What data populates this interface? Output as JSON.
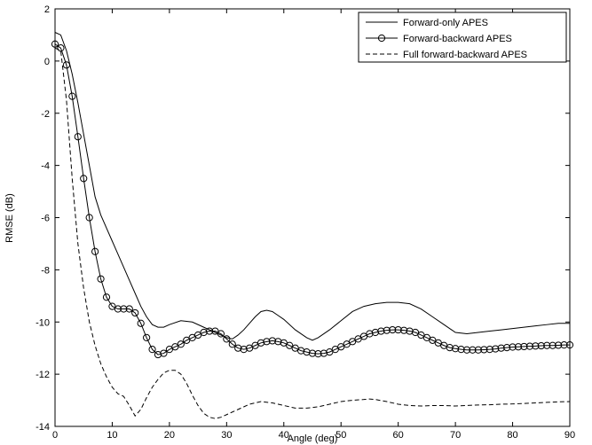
{
  "chart_data": {
    "type": "line",
    "xlabel": "Angle (deg)",
    "ylabel": "RMSE (dB)",
    "xlim": [
      0,
      90
    ],
    "ylim": [
      -14,
      2
    ],
    "xticks": [
      0,
      10,
      20,
      30,
      40,
      50,
      60,
      70,
      80,
      90
    ],
    "yticks": [
      2,
      0,
      -2,
      -4,
      -6,
      -8,
      -10,
      -12,
      -14
    ],
    "grid": false,
    "legend_position": "top-right",
    "series": [
      {
        "name": "Forward-only APES",
        "style": "solid",
        "marker": "none",
        "x": [
          0,
          1,
          2,
          3,
          4,
          5,
          6,
          7,
          8,
          9,
          10,
          11,
          12,
          13,
          14,
          15,
          16,
          17,
          18,
          19,
          20,
          22,
          24,
          26,
          28,
          29,
          30,
          31,
          32,
          33,
          34,
          35,
          36,
          37,
          38,
          39,
          40,
          42,
          44,
          45,
          46,
          48,
          50,
          52,
          54,
          56,
          58,
          60,
          62,
          64,
          66,
          68,
          70,
          72,
          74,
          76,
          78,
          80,
          82,
          84,
          86,
          88,
          90
        ],
        "y": [
          1.1,
          1.0,
          0.4,
          -0.5,
          -1.6,
          -2.8,
          -4.0,
          -5.2,
          -5.9,
          -6.4,
          -6.9,
          -7.4,
          -7.9,
          -8.4,
          -8.9,
          -9.4,
          -9.8,
          -10.1,
          -10.2,
          -10.2,
          -10.1,
          -9.95,
          -10.0,
          -10.2,
          -10.4,
          -10.5,
          -10.6,
          -10.65,
          -10.5,
          -10.3,
          -10.05,
          -9.8,
          -9.6,
          -9.55,
          -9.6,
          -9.75,
          -9.9,
          -10.3,
          -10.6,
          -10.7,
          -10.6,
          -10.3,
          -9.95,
          -9.6,
          -9.4,
          -9.3,
          -9.25,
          -9.25,
          -9.3,
          -9.5,
          -9.8,
          -10.1,
          -10.4,
          -10.45,
          -10.4,
          -10.35,
          -10.3,
          -10.25,
          -10.2,
          -10.15,
          -10.1,
          -10.05,
          -10.05
        ]
      },
      {
        "name": "Forward-backward APES",
        "style": "solid",
        "marker": "circle",
        "x": [
          0,
          1,
          2,
          3,
          4,
          5,
          6,
          7,
          8,
          9,
          10,
          11,
          12,
          13,
          14,
          15,
          16,
          17,
          18,
          19,
          20,
          21,
          22,
          23,
          24,
          25,
          26,
          27,
          28,
          29,
          30,
          31,
          32,
          33,
          34,
          35,
          36,
          37,
          38,
          39,
          40,
          41,
          42,
          43,
          44,
          45,
          46,
          47,
          48,
          49,
          50,
          51,
          52,
          53,
          54,
          55,
          56,
          57,
          58,
          59,
          60,
          61,
          62,
          63,
          64,
          65,
          66,
          67,
          68,
          69,
          70,
          71,
          72,
          73,
          74,
          75,
          76,
          77,
          78,
          79,
          80,
          81,
          82,
          83,
          84,
          85,
          86,
          87,
          88,
          89,
          90
        ],
        "y": [
          0.65,
          0.5,
          -0.15,
          -1.35,
          -2.9,
          -4.5,
          -6.0,
          -7.3,
          -8.35,
          -9.05,
          -9.4,
          -9.5,
          -9.5,
          -9.5,
          -9.65,
          -10.05,
          -10.6,
          -11.05,
          -11.25,
          -11.2,
          -11.05,
          -10.95,
          -10.85,
          -10.7,
          -10.6,
          -10.5,
          -10.4,
          -10.35,
          -10.35,
          -10.45,
          -10.65,
          -10.85,
          -11.0,
          -11.05,
          -11.0,
          -10.9,
          -10.8,
          -10.75,
          -10.72,
          -10.75,
          -10.8,
          -10.9,
          -11.0,
          -11.1,
          -11.15,
          -11.2,
          -11.22,
          -11.2,
          -11.15,
          -11.05,
          -10.95,
          -10.85,
          -10.75,
          -10.65,
          -10.55,
          -10.45,
          -10.4,
          -10.35,
          -10.32,
          -10.3,
          -10.3,
          -10.32,
          -10.35,
          -10.4,
          -10.5,
          -10.6,
          -10.7,
          -10.8,
          -10.9,
          -10.98,
          -11.02,
          -11.05,
          -11.07,
          -11.07,
          -11.07,
          -11.06,
          -11.05,
          -11.03,
          -11.0,
          -10.98,
          -10.96,
          -10.95,
          -10.94,
          -10.93,
          -10.92,
          -10.91,
          -10.9,
          -10.9,
          -10.89,
          -10.88,
          -10.88
        ]
      },
      {
        "name": "Full forward-backward APES",
        "style": "dashed",
        "marker": "none",
        "x": [
          0,
          1,
          2,
          3,
          4,
          5,
          6,
          7,
          8,
          9,
          10,
          11,
          12,
          13,
          14,
          15,
          16,
          17,
          18,
          19,
          20,
          21,
          22,
          23,
          24,
          25,
          26,
          27,
          28,
          29,
          30,
          32,
          34,
          36,
          38,
          40,
          42,
          44,
          46,
          48,
          50,
          52,
          54,
          55,
          56,
          58,
          60,
          62,
          64,
          66,
          68,
          70,
          72,
          74,
          76,
          78,
          80,
          82,
          84,
          86,
          88,
          90
        ],
        "y": [
          0.5,
          0.4,
          -1.5,
          -4.5,
          -7.0,
          -8.7,
          -10.0,
          -10.9,
          -11.6,
          -12.1,
          -12.5,
          -12.75,
          -12.85,
          -13.2,
          -13.6,
          -13.35,
          -12.9,
          -12.5,
          -12.2,
          -11.95,
          -11.85,
          -11.85,
          -12.0,
          -12.35,
          -12.8,
          -13.2,
          -13.5,
          -13.65,
          -13.7,
          -13.65,
          -13.55,
          -13.35,
          -13.15,
          -13.05,
          -13.1,
          -13.2,
          -13.3,
          -13.3,
          -13.25,
          -13.15,
          -13.05,
          -13.0,
          -12.97,
          -12.95,
          -12.97,
          -13.05,
          -13.15,
          -13.2,
          -13.22,
          -13.2,
          -13.2,
          -13.22,
          -13.2,
          -13.18,
          -13.17,
          -13.15,
          -13.14,
          -13.12,
          -13.1,
          -13.08,
          -13.06,
          -13.05
        ]
      }
    ]
  }
}
